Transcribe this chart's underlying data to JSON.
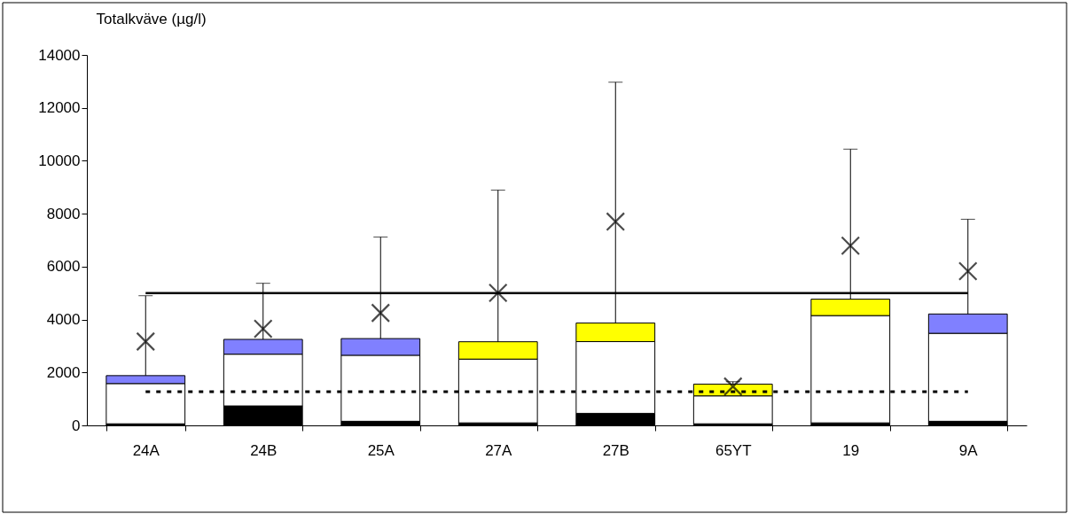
{
  "chart_data": {
    "type": "bar",
    "stacked": true,
    "ylabel": "Totalkväve (µg/l)",
    "categories": [
      "24A",
      "24B",
      "25A",
      "27A",
      "27B",
      "65YT",
      "19",
      "9A"
    ],
    "ylim": [
      0,
      14000
    ],
    "yticks": [
      0,
      2000,
      4000,
      6000,
      8000,
      10000,
      12000,
      14000
    ],
    "grid": false,
    "series": [
      {
        "color": "#000000",
        "values": [
          60,
          735,
          155,
          95,
          455,
          60,
          95,
          155
        ]
      },
      {
        "color": "#ffffff",
        "values": [
          1520,
          1955,
          2495,
          2410,
          2710,
          1055,
          4055,
          3325
        ]
      },
      {
        "colors": [
          "#8080ff",
          "#8080ff",
          "#8080ff",
          "#ffff00",
          "#ffff00",
          "#ffff00",
          "#ffff00",
          "#8080ff"
        ],
        "values": [
          300,
          560,
          630,
          655,
          705,
          445,
          620,
          730
        ],
        "errors": [
          [
            1880,
            4900
          ],
          [
            3250,
            5370
          ],
          [
            3280,
            7120
          ],
          [
            3160,
            8890
          ],
          [
            3870,
            12970
          ],
          [
            1560,
            1650
          ],
          [
            4770,
            10440
          ],
          [
            4210,
            7790
          ]
        ]
      },
      {
        "type": "scatter",
        "marker": "cross",
        "color": "#000000",
        "x": [
          "24A",
          "24B",
          "25A",
          "27A",
          "27B",
          "65YT",
          "19",
          "9A"
        ],
        "values": [
          3170,
          3650,
          4250,
          5010,
          7700,
          1470,
          6790,
          5830
        ]
      }
    ],
    "ref_lines": [
      {
        "axis": "y",
        "value": 5000,
        "line_style": "solid",
        "color": "#000000"
      },
      {
        "axis": "y",
        "value": 1270,
        "line_style": "dotted",
        "color": "#000000"
      }
    ]
  }
}
